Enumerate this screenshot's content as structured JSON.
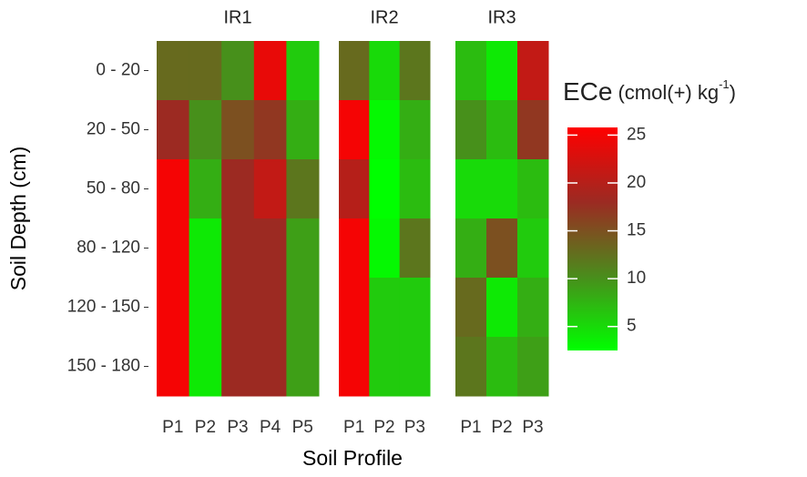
{
  "chart_data": {
    "type": "heatmap",
    "x_label": "Soil Profile",
    "y_label": "Soil Depth (cm)",
    "rows": [
      "0 - 20",
      "20 - 50",
      "50 - 80",
      "80 - 120",
      "120 - 150",
      "150 - 180"
    ],
    "facets": [
      {
        "name": "IR1",
        "categories": [
          "P1",
          "P2",
          "P3",
          "P4",
          "P5"
        ],
        "values": [
          [
            13,
            13,
            10,
            24,
            6
          ],
          [
            18,
            10,
            15,
            17,
            8
          ],
          [
            25,
            8,
            18,
            21,
            12
          ],
          [
            25,
            4,
            18,
            18,
            9
          ],
          [
            25,
            4,
            18,
            18,
            9
          ],
          [
            25,
            4,
            18,
            18,
            9
          ]
        ]
      },
      {
        "name": "IR2",
        "categories": [
          "P1",
          "P2",
          "P3"
        ],
        "values": [
          [
            13,
            5,
            12
          ],
          [
            25,
            3,
            8
          ],
          [
            20,
            2.5,
            7
          ],
          [
            25,
            3,
            12
          ],
          [
            25,
            6,
            6
          ],
          [
            25,
            6,
            6
          ]
        ]
      },
      {
        "name": "IR3",
        "categories": [
          "P1",
          "P2",
          "P3"
        ],
        "values": [
          [
            7,
            4,
            21
          ],
          [
            10,
            7,
            17
          ],
          [
            5,
            5,
            7
          ],
          [
            8,
            15,
            6
          ],
          [
            13,
            4,
            8
          ],
          [
            12,
            7,
            9
          ]
        ]
      }
    ],
    "legend": {
      "title": "ECe",
      "unit": "(cmol(+) kg",
      "unit_sup": "-1",
      "unit_end": ")"
    },
    "clim": [
      2.5,
      25.8
    ],
    "cticks": [
      5,
      10,
      15,
      20,
      25
    ],
    "colors": [
      "#00ff00",
      "#4a8c1c",
      "#9c2a22",
      "#ff0000"
    ]
  }
}
